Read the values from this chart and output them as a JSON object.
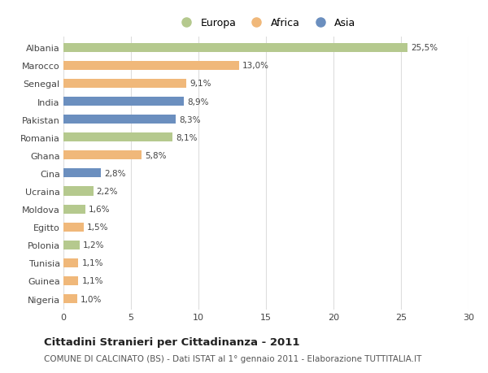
{
  "countries": [
    "Albania",
    "Marocco",
    "Senegal",
    "India",
    "Pakistan",
    "Romania",
    "Ghana",
    "Cina",
    "Ucraina",
    "Moldova",
    "Egitto",
    "Polonia",
    "Tunisia",
    "Guinea",
    "Nigeria"
  ],
  "values": [
    25.5,
    13.0,
    9.1,
    8.9,
    8.3,
    8.1,
    5.8,
    2.8,
    2.2,
    1.6,
    1.5,
    1.2,
    1.1,
    1.1,
    1.0
  ],
  "labels": [
    "25,5%",
    "13,0%",
    "9,1%",
    "8,9%",
    "8,3%",
    "8,1%",
    "5,8%",
    "2,8%",
    "2,2%",
    "1,6%",
    "1,5%",
    "1,2%",
    "1,1%",
    "1,1%",
    "1,0%"
  ],
  "continent": [
    "Europa",
    "Africa",
    "Africa",
    "Asia",
    "Asia",
    "Europa",
    "Africa",
    "Asia",
    "Europa",
    "Europa",
    "Africa",
    "Europa",
    "Africa",
    "Africa",
    "Africa"
  ],
  "colors": {
    "Europa": "#b5c98e",
    "Africa": "#f0b87a",
    "Asia": "#6b8fbf"
  },
  "xlim": [
    0,
    30
  ],
  "xticks": [
    0,
    5,
    10,
    15,
    20,
    25,
    30
  ],
  "title": "Cittadini Stranieri per Cittadinanza - 2011",
  "subtitle": "COMUNE DI CALCINATO (BS) - Dati ISTAT al 1° gennaio 2011 - Elaborazione TUTTITALIA.IT",
  "background_color": "#ffffff",
  "grid_color": "#dddddd",
  "bar_height": 0.5,
  "label_fontsize": 7.5,
  "ytick_fontsize": 8,
  "xtick_fontsize": 8,
  "title_fontsize": 9.5,
  "subtitle_fontsize": 7.5
}
